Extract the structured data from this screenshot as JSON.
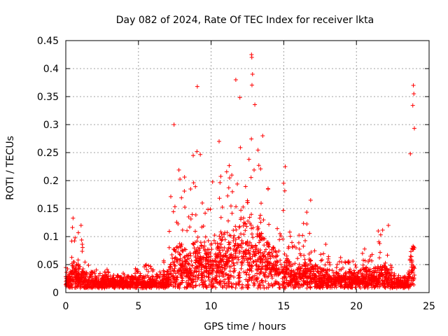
{
  "chart_data": {
    "type": "scatter",
    "title": "Day 082 of 2024, Rate Of TEC Index for receiver lkta",
    "xlabel": "GPS time / hours",
    "ylabel": "ROTI / TECUs",
    "xlim": [
      0,
      25
    ],
    "ylim": [
      0,
      0.45
    ],
    "xticks": [
      0,
      5,
      10,
      15,
      20,
      25
    ],
    "xtick_labels": [
      "0",
      "5",
      "10",
      "15",
      "20",
      "25"
    ],
    "yticks": [
      0,
      0.05,
      0.1,
      0.15,
      0.2,
      0.25,
      0.3,
      0.35,
      0.4,
      0.45
    ],
    "ytick_labels": [
      "0",
      "0.05",
      "0.1",
      "0.15",
      "0.2",
      "0.25",
      "0.3",
      "0.35",
      "0.4",
      "0.45"
    ],
    "grid": true,
    "marker": "+",
    "color": "#ff0000",
    "series": [
      {
        "name": "ROTI",
        "note": "approximate envelope of the dense point cloud: [hour, upper ROTI, typical ROTI]",
        "envelope": [
          [
            0.0,
            0.05,
            0.02
          ],
          [
            0.3,
            0.07,
            0.025
          ],
          [
            0.5,
            0.13,
            0.04
          ],
          [
            0.7,
            0.1,
            0.035
          ],
          [
            1.0,
            0.12,
            0.035
          ],
          [
            1.3,
            0.06,
            0.025
          ],
          [
            2.0,
            0.04,
            0.02
          ],
          [
            3.0,
            0.045,
            0.02
          ],
          [
            4.0,
            0.04,
            0.02
          ],
          [
            5.0,
            0.045,
            0.02
          ],
          [
            5.5,
            0.05,
            0.02
          ],
          [
            6.5,
            0.045,
            0.02
          ],
          [
            7.0,
            0.08,
            0.025
          ],
          [
            7.5,
            0.3,
            0.06
          ],
          [
            7.8,
            0.22,
            0.06
          ],
          [
            8.0,
            0.25,
            0.06
          ],
          [
            8.5,
            0.15,
            0.05
          ],
          [
            9.0,
            0.37,
            0.07
          ],
          [
            9.3,
            0.25,
            0.06
          ],
          [
            9.6,
            0.2,
            0.06
          ],
          [
            10.0,
            0.18,
            0.05
          ],
          [
            10.5,
            0.27,
            0.07
          ],
          [
            11.0,
            0.23,
            0.07
          ],
          [
            11.5,
            0.28,
            0.08
          ],
          [
            12.0,
            0.37,
            0.09
          ],
          [
            12.5,
            0.35,
            0.09
          ],
          [
            12.8,
            0.42,
            0.09
          ],
          [
            13.0,
            0.37,
            0.08
          ],
          [
            13.5,
            0.25,
            0.07
          ],
          [
            14.0,
            0.19,
            0.06
          ],
          [
            14.5,
            0.17,
            0.05
          ],
          [
            15.0,
            0.22,
            0.05
          ],
          [
            15.5,
            0.09,
            0.035
          ],
          [
            16.0,
            0.1,
            0.035
          ],
          [
            16.5,
            0.14,
            0.04
          ],
          [
            16.8,
            0.165,
            0.04
          ],
          [
            17.0,
            0.09,
            0.035
          ],
          [
            17.5,
            0.08,
            0.03
          ],
          [
            18.0,
            0.09,
            0.03
          ],
          [
            18.5,
            0.055,
            0.025
          ],
          [
            19.0,
            0.07,
            0.03
          ],
          [
            19.5,
            0.06,
            0.025
          ],
          [
            20.0,
            0.055,
            0.025
          ],
          [
            20.5,
            0.08,
            0.03
          ],
          [
            21.0,
            0.07,
            0.03
          ],
          [
            21.5,
            0.11,
            0.03
          ],
          [
            22.0,
            0.12,
            0.035
          ],
          [
            22.5,
            0.05,
            0.02
          ],
          [
            23.0,
            0.03,
            0.018
          ],
          [
            23.5,
            0.03,
            0.018
          ],
          [
            23.7,
            0.25,
            0.05
          ],
          [
            23.9,
            0.37,
            0.06
          ],
          [
            24.0,
            0.36,
            0.06
          ]
        ],
        "sample_points": [
          [
            12.78,
            0.425
          ],
          [
            12.8,
            0.42
          ],
          [
            12.85,
            0.39
          ],
          [
            11.7,
            0.38
          ],
          [
            9.05,
            0.368
          ],
          [
            23.92,
            0.37
          ],
          [
            23.95,
            0.355
          ],
          [
            7.45,
            0.3
          ],
          [
            13.55,
            0.28
          ],
          [
            10.55,
            0.27
          ],
          [
            15.1,
            0.225
          ],
          [
            16.85,
            0.165
          ],
          [
            0.5,
            0.133
          ],
          [
            1.05,
            0.12
          ],
          [
            22.2,
            0.12
          ],
          [
            21.5,
            0.11
          ],
          [
            23.9,
            0.083
          ]
        ]
      }
    ]
  }
}
